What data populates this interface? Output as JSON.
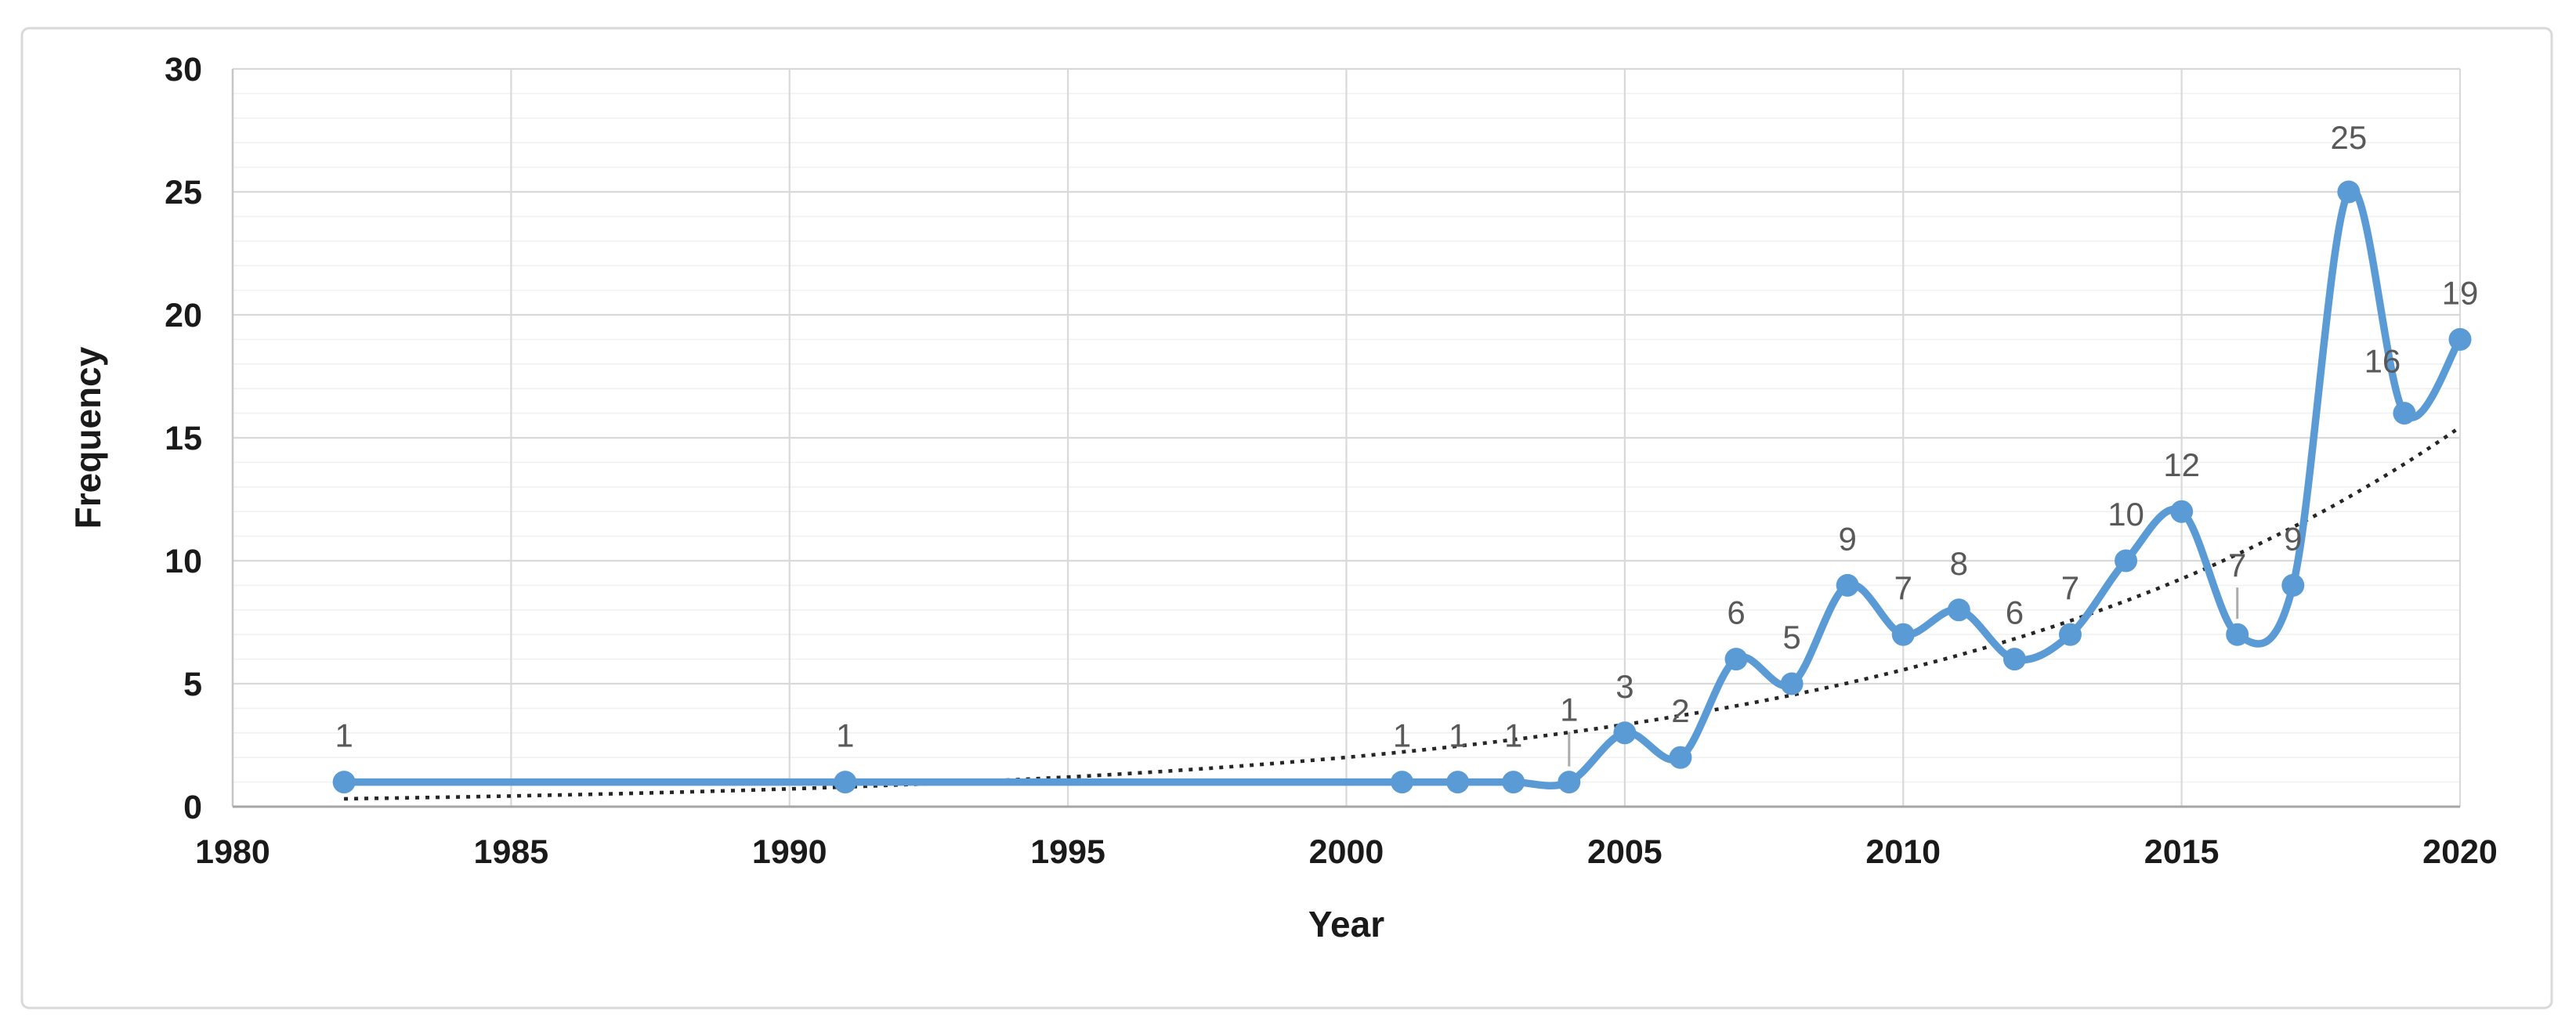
{
  "chart": {
    "background": "#FFFFFF",
    "outer_border_color": "#D9D9D9"
  },
  "chart_data": {
    "type": "line",
    "title": "",
    "xlabel": "Year",
    "ylabel": "Frequency",
    "x": [
      1982,
      1991,
      2001,
      2002,
      2003,
      2004,
      2005,
      2006,
      2007,
      2008,
      2009,
      2010,
      2011,
      2012,
      2013,
      2014,
      2015,
      2016,
      2017,
      2018,
      2019,
      2020
    ],
    "values": [
      1,
      1,
      1,
      1,
      1,
      1,
      3,
      2,
      6,
      5,
      9,
      7,
      8,
      6,
      7,
      10,
      12,
      7,
      9,
      25,
      16,
      19
    ],
    "data_labels": [
      "1",
      "1",
      "1",
      "1",
      "1",
      "1",
      "3",
      "2",
      "6",
      "5",
      "9",
      "7",
      "8",
      "6",
      "7",
      "10",
      "12",
      "7",
      "9",
      "25",
      "16",
      "19"
    ],
    "xlim": [
      1980,
      2020
    ],
    "ylim": [
      0,
      30
    ],
    "x_ticks": [
      1980,
      1985,
      1990,
      1995,
      2000,
      2005,
      2010,
      2015,
      2020
    ],
    "y_ticks": [
      0,
      5,
      10,
      15,
      20,
      25,
      30
    ],
    "y_minor_unit": 1,
    "grid": {
      "major_on": true,
      "minor_horizontal_on": true,
      "major_color": "#D9D9D9",
      "minor_color": "#F1F1F1"
    },
    "legend": "none",
    "series": [
      {
        "name": "Frequency",
        "color": "#5B9BD5",
        "smooth": true,
        "marker": "circle",
        "has_data_labels": true
      }
    ],
    "trendline": {
      "type": "exponential",
      "style": "dotted",
      "color": "#262626",
      "a": 0.32,
      "b": 0.102,
      "base_year": 1982,
      "range": [
        1982,
        2020
      ]
    },
    "label_color": "#595959",
    "tick_color": "#1A1A1A",
    "axis_title_color": "#1A1A1A"
  }
}
